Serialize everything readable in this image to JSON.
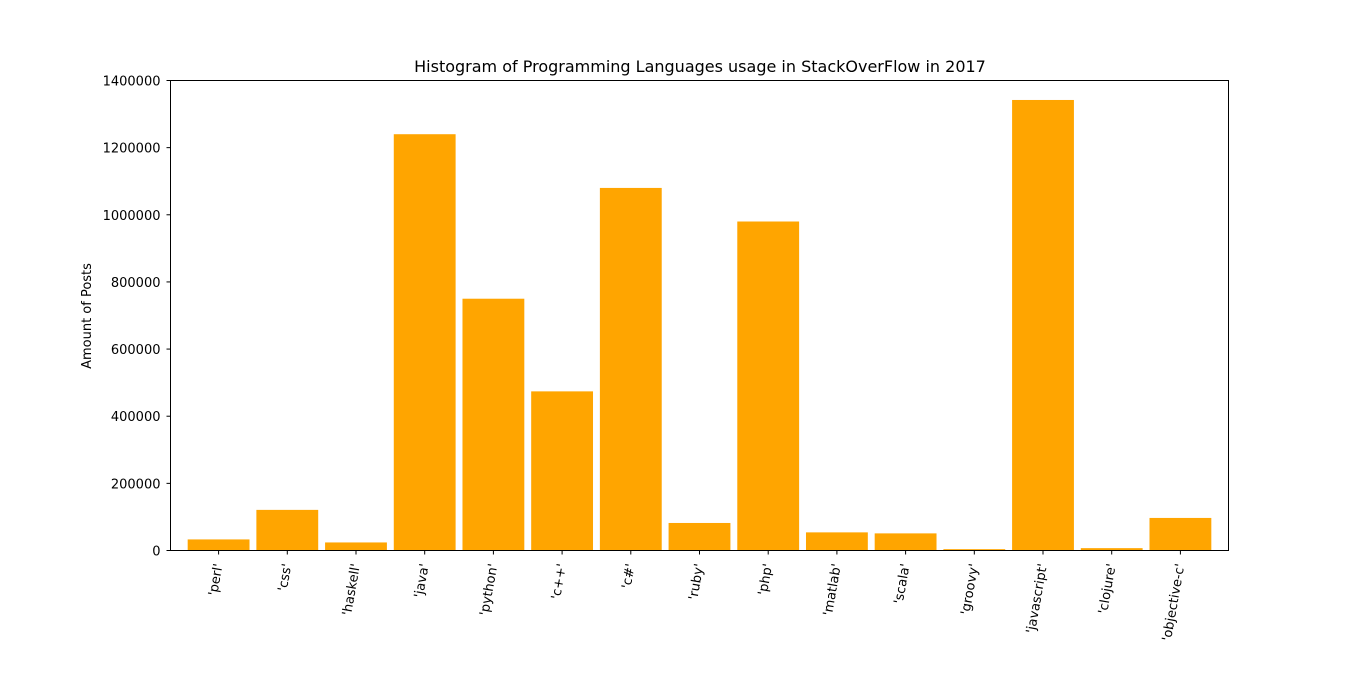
{
  "chart_data": {
    "type": "bar",
    "title": "Histogram of Programming Languages usage in StackOverFlow in 2017",
    "xlabel": "",
    "ylabel": "Amount of Posts",
    "categories": [
      "'perl'",
      "'css'",
      "'haskell'",
      "'java'",
      "'python'",
      "'c++'",
      "'c#'",
      "'ruby'",
      "'php'",
      "'matlab'",
      "'scala'",
      "'groovy'",
      "'javascript'",
      "'clojure'",
      "'objective-c'"
    ],
    "values": [
      33000,
      121000,
      24000,
      1240000,
      750000,
      474000,
      1080000,
      82000,
      980000,
      54000,
      51000,
      4000,
      1342000,
      7000,
      97000
    ],
    "ylim": [
      0,
      1400000
    ],
    "yticks": [
      0,
      200000,
      400000,
      600000,
      800000,
      1000000,
      1200000,
      1400000
    ],
    "ytick_labels": [
      "0",
      "200000",
      "400000",
      "600000",
      "800000",
      "1000000",
      "1200000",
      "1400000"
    ],
    "grid": false,
    "colors": {
      "bar": "#ffa500",
      "axis": "#000000"
    }
  }
}
